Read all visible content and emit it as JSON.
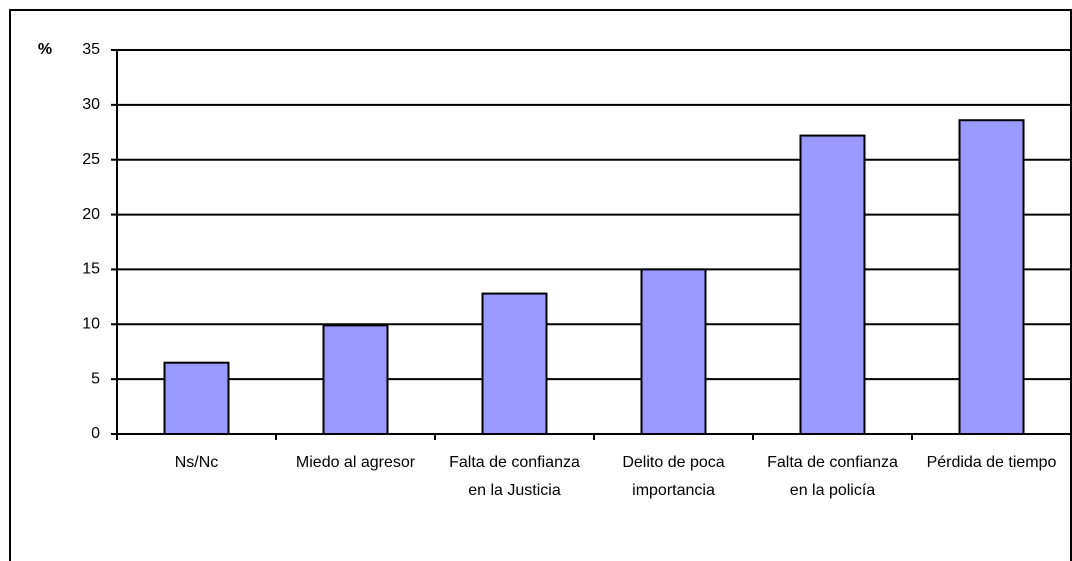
{
  "chart_data": {
    "type": "bar",
    "y_label": "%",
    "categories": [
      "Ns/Nc",
      "Miedo al agresor",
      "Falta de confianza en la Justicia",
      "Delito de poca importancia",
      "Falta de confianza en la policía",
      "Pérdida de tiempo"
    ],
    "values": [
      6.5,
      9.9,
      12.8,
      15.0,
      27.2,
      28.6
    ],
    "color": "#9999ff",
    "ylim": [
      0,
      35
    ],
    "yticks": [
      0,
      5,
      10,
      15,
      20,
      25,
      30,
      35
    ],
    "grid": true
  }
}
